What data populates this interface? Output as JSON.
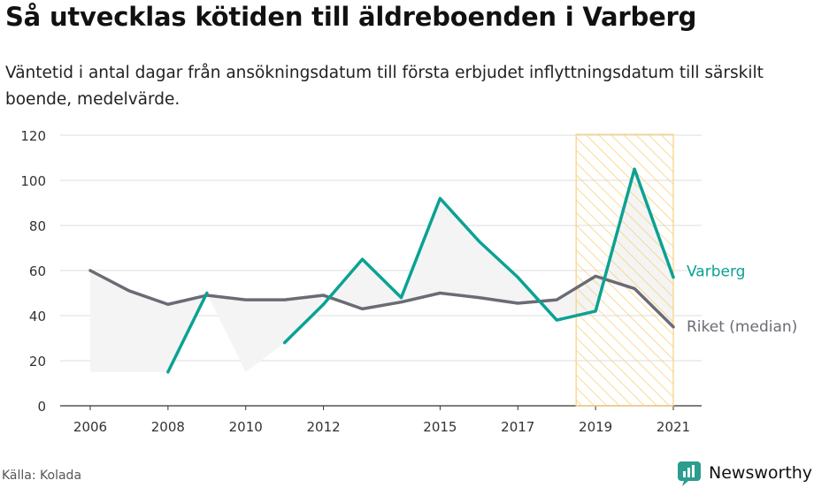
{
  "header": {
    "title": "Så utvecklas kötiden till äldreboenden i Varberg",
    "subtitle": "Väntetid i antal dagar från ansökningsdatum till första erbjudet inflyttningsdatum till särskilt boende, medelvärde."
  },
  "footer": {
    "source": "Källa: Kolada",
    "brand": "Newsworthy"
  },
  "colors": {
    "varberg": "#0aa294",
    "riket": "#6b6b75",
    "highlight": "#f7d27a",
    "area": "#f4f4f4",
    "grid": "#dddddd",
    "brand_icon": "#2a9d8f"
  },
  "chart_data": {
    "type": "line",
    "x_ticks": [
      2006,
      2008,
      2010,
      2012,
      2015,
      2017,
      2019,
      2021
    ],
    "y_ticks": [
      0,
      20,
      40,
      60,
      80,
      100,
      120
    ],
    "ylim": [
      0,
      120
    ],
    "xlim": [
      2006,
      2021
    ],
    "grid": true,
    "highlight_range": [
      2018.5,
      2021
    ],
    "series": [
      {
        "name": "Varberg",
        "x": [
          2006,
          2007,
          2008,
          2009,
          2010,
          2011,
          2012,
          2013,
          2014,
          2015,
          2016,
          2017,
          2018,
          2019,
          2020,
          2021
        ],
        "values": [
          null,
          null,
          15,
          50,
          null,
          28,
          45,
          65,
          48,
          92,
          73,
          57,
          38,
          42,
          105,
          57
        ]
      },
      {
        "name": "Riket (median)",
        "x": [
          2006,
          2007,
          2008,
          2009,
          2010,
          2011,
          2012,
          2013,
          2014,
          2015,
          2016,
          2017,
          2018,
          2019,
          2020,
          2021
        ],
        "values": [
          60,
          51,
          45,
          49,
          47,
          47,
          49,
          43,
          46,
          50,
          48,
          45.5,
          47,
          57.5,
          52,
          35
        ]
      }
    ]
  }
}
